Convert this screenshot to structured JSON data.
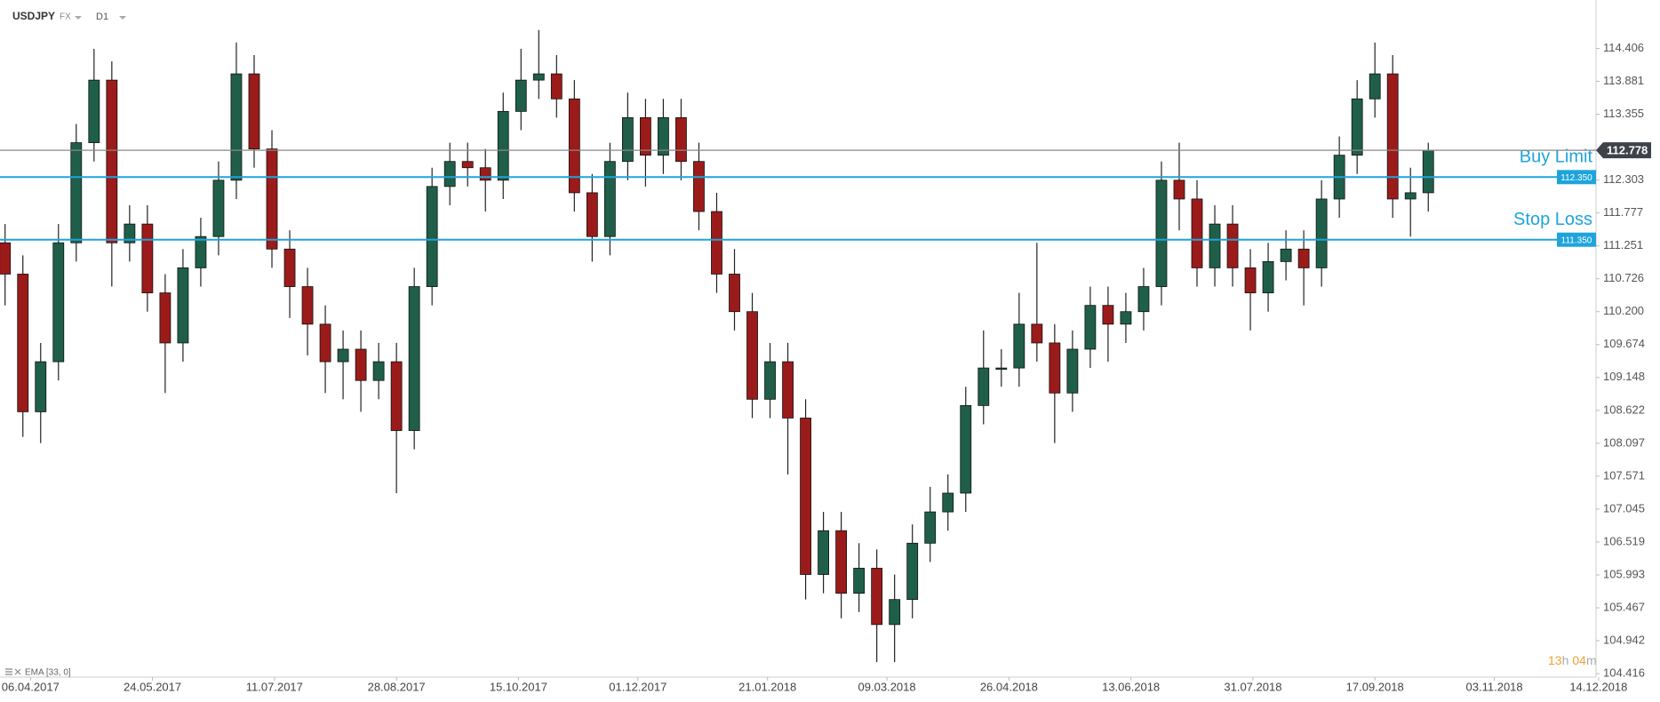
{
  "header": {
    "symbol": "USDJPY",
    "market": "FX",
    "timeframe": "D1"
  },
  "chart_data": {
    "type": "candlestick",
    "x": [
      "27.03.2017",
      "03.04.2017",
      "10.04.2017",
      "17.04.2017",
      "24.04.2017",
      "01.05.2017",
      "08.05.2017",
      "15.05.2017",
      "22.05.2017",
      "29.05.2017",
      "05.06.2017",
      "12.06.2017",
      "19.06.2017",
      "26.06.2017",
      "03.07.2017",
      "10.07.2017",
      "17.07.2017",
      "24.07.2017",
      "31.07.2017",
      "07.08.2017",
      "14.08.2017",
      "21.08.2017",
      "28.08.2017",
      "04.09.2017",
      "11.09.2017",
      "18.09.2017",
      "25.09.2017",
      "02.10.2017",
      "09.10.2017",
      "16.10.2017",
      "23.10.2017",
      "30.10.2017",
      "06.11.2017",
      "13.11.2017",
      "20.11.2017",
      "27.11.2017",
      "04.12.2017",
      "11.12.2017",
      "18.12.2017",
      "25.12.2017",
      "01.01.2018",
      "08.01.2018",
      "15.01.2018",
      "22.01.2018",
      "29.01.2018",
      "05.02.2018",
      "12.02.2018",
      "19.02.2018",
      "26.02.2018",
      "05.03.2018",
      "12.03.2018",
      "19.03.2018",
      "26.03.2018",
      "02.04.2018",
      "09.04.2018",
      "16.04.2018",
      "23.04.2018",
      "30.04.2018",
      "07.05.2018",
      "14.05.2018",
      "21.05.2018",
      "28.05.2018",
      "04.06.2018",
      "11.06.2018",
      "18.06.2018",
      "25.06.2018",
      "02.07.2018",
      "09.07.2018",
      "16.07.2018",
      "23.07.2018",
      "30.07.2018",
      "06.08.2018",
      "13.08.2018",
      "20.08.2018",
      "27.08.2018",
      "03.09.2018",
      "10.09.2018",
      "17.09.2018",
      "24.09.2018",
      "01.10.2018",
      "08.10.2018"
    ],
    "open": [
      111.3,
      110.8,
      108.6,
      109.4,
      111.3,
      112.9,
      113.9,
      111.3,
      111.6,
      110.5,
      109.7,
      110.9,
      111.4,
      112.3,
      114.0,
      112.8,
      111.2,
      110.6,
      110.0,
      109.4,
      109.6,
      109.1,
      109.4,
      108.3,
      110.6,
      112.2,
      112.6,
      112.5,
      112.3,
      113.4,
      113.9,
      114.0,
      113.6,
      112.1,
      111.4,
      112.6,
      113.3,
      112.7,
      113.3,
      112.6,
      111.8,
      110.8,
      110.2,
      108.8,
      109.4,
      108.5,
      106.0,
      106.7,
      105.7,
      106.1,
      105.2,
      105.6,
      106.5,
      107.0,
      107.3,
      108.7,
      109.3,
      109.3,
      110.0,
      109.7,
      108.9,
      109.6,
      110.3,
      110.0,
      110.2,
      110.6,
      112.3,
      112.0,
      110.9,
      111.6,
      110.9,
      110.5,
      111.0,
      111.2,
      110.9,
      112.0,
      112.7,
      113.6,
      114.0,
      112.0,
      112.1
    ],
    "high": [
      111.6,
      111.1,
      109.7,
      111.6,
      113.2,
      114.4,
      114.2,
      111.9,
      111.9,
      110.8,
      111.2,
      111.7,
      112.6,
      114.5,
      114.3,
      113.1,
      111.5,
      110.9,
      110.3,
      109.9,
      109.9,
      109.7,
      109.7,
      110.9,
      112.5,
      112.9,
      112.9,
      112.8,
      113.7,
      114.4,
      114.7,
      114.3,
      113.9,
      112.4,
      112.9,
      113.7,
      113.6,
      113.6,
      113.6,
      112.9,
      112.1,
      111.2,
      110.5,
      109.7,
      109.7,
      108.8,
      107.0,
      107.0,
      106.5,
      106.4,
      106.0,
      106.8,
      107.4,
      107.6,
      109.0,
      109.9,
      109.6,
      110.5,
      111.3,
      110.0,
      109.9,
      110.6,
      110.6,
      110.5,
      110.9,
      112.6,
      112.9,
      112.3,
      111.9,
      111.9,
      111.2,
      111.3,
      111.5,
      111.5,
      112.3,
      113.0,
      113.9,
      114.5,
      114.3,
      112.5,
      112.9
    ],
    "low": [
      110.3,
      108.2,
      108.1,
      109.1,
      111.0,
      112.6,
      110.6,
      111.0,
      110.2,
      108.9,
      109.4,
      110.6,
      111.1,
      112.0,
      112.5,
      110.9,
      110.1,
      109.5,
      108.9,
      108.8,
      108.6,
      108.8,
      107.3,
      108.0,
      110.3,
      111.9,
      112.2,
      111.8,
      112.0,
      113.1,
      113.6,
      113.3,
      111.8,
      111.0,
      111.1,
      112.3,
      112.2,
      112.4,
      112.3,
      111.5,
      110.5,
      109.9,
      108.5,
      108.5,
      107.6,
      105.6,
      105.7,
      105.3,
      105.4,
      104.6,
      104.6,
      105.3,
      106.2,
      106.7,
      107.0,
      108.4,
      109.0,
      109.0,
      109.4,
      108.1,
      108.6,
      109.3,
      109.4,
      109.7,
      109.9,
      110.3,
      111.5,
      110.6,
      110.6,
      110.6,
      109.9,
      110.2,
      110.7,
      110.3,
      110.6,
      111.7,
      112.4,
      113.3,
      111.7,
      111.4,
      111.8
    ],
    "close": [
      110.8,
      108.6,
      109.4,
      111.3,
      112.9,
      113.9,
      111.3,
      111.6,
      110.5,
      109.7,
      110.9,
      111.4,
      112.3,
      114.0,
      112.8,
      111.2,
      110.6,
      110.0,
      109.4,
      109.6,
      109.1,
      109.4,
      108.3,
      110.6,
      112.2,
      112.6,
      112.5,
      112.3,
      113.4,
      113.9,
      114.0,
      113.6,
      112.1,
      111.4,
      112.6,
      113.3,
      112.7,
      113.3,
      112.6,
      111.8,
      110.8,
      110.2,
      108.8,
      109.4,
      108.5,
      106.0,
      106.7,
      105.7,
      106.1,
      105.2,
      105.6,
      106.5,
      107.0,
      107.3,
      108.7,
      109.3,
      109.3,
      110.0,
      109.7,
      108.9,
      109.6,
      110.3,
      110.0,
      110.2,
      110.6,
      112.3,
      112.0,
      110.9,
      111.6,
      110.9,
      110.5,
      111.0,
      111.2,
      110.9,
      112.0,
      112.7,
      113.6,
      114.0,
      112.0,
      112.1,
      112.778
    ],
    "up_color": "#1f5f4a",
    "down_color": "#9b1b1b",
    "xlim": [
      "25.03.2017",
      "13.12.2018"
    ],
    "xticks": [
      "06.04.2017",
      "24.05.2017",
      "11.07.2017",
      "28.08.2017",
      "15.10.2017",
      "01.12.2017",
      "21.01.2018",
      "09.03.2018",
      "26.04.2018",
      "13.06.2018",
      "31.07.2018",
      "17.09.2018",
      "03.11.2018",
      "14.12.2018"
    ],
    "ylim": [
      104.36,
      115.18
    ],
    "yticks": [
      114.406,
      113.881,
      113.355,
      112.303,
      111.777,
      111.251,
      110.726,
      {
        "value": 110.2,
        "label": "110.200"
      },
      109.674,
      109.148,
      108.622,
      108.097,
      107.571,
      107.045,
      106.519,
      105.993,
      105.467,
      104.942,
      104.416
    ],
    "last_price": 112.778,
    "orders": [
      {
        "name": "Buy Limit",
        "price": {
          "value": 112.35,
          "label": "112.350"
        },
        "color": "#1ea4dc"
      },
      {
        "name": "Stop Loss",
        "price": {
          "value": 111.35,
          "label": "111.350"
        },
        "color": "#1ea4dc"
      }
    ],
    "indicator": "EMA [33, 0]",
    "countdown": {
      "hours": "13",
      "hours_unit": "h",
      "minutes": "04",
      "minutes_unit": "m"
    }
  }
}
